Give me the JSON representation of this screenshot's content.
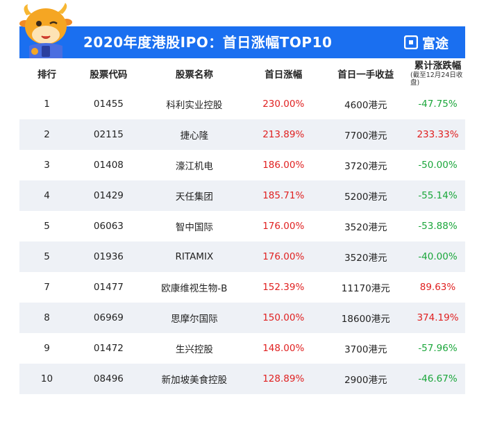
{
  "banner": {
    "title": "2020年度港股IPO：首日涨幅TOP10",
    "brand": "富途",
    "brand_icon": "futu-logo-icon",
    "background_color": "#1a6ff0"
  },
  "table": {
    "headers": {
      "rank": "排行",
      "code": "股票代码",
      "name": "股票名称",
      "first_day_gain": "首日涨幅",
      "first_day_lot_profit": "首日一手收益",
      "cumulative": "累计涨跌幅",
      "cumulative_note": "(截至12月24日收盘)"
    },
    "rows": [
      {
        "rank": "1",
        "code": "01455",
        "name": "科利实业控股",
        "gain": "230.00%",
        "profit": "4600港元",
        "cumulative": "-47.75%",
        "cum_dir": "down"
      },
      {
        "rank": "2",
        "code": "02115",
        "name": "捷心隆",
        "gain": "213.89%",
        "profit": "7700港元",
        "cumulative": "233.33%",
        "cum_dir": "up"
      },
      {
        "rank": "3",
        "code": "01408",
        "name": "濠江机电",
        "gain": "186.00%",
        "profit": "3720港元",
        "cumulative": "-50.00%",
        "cum_dir": "down"
      },
      {
        "rank": "4",
        "code": "01429",
        "name": "天任集团",
        "gain": "185.71%",
        "profit": "5200港元",
        "cumulative": "-55.14%",
        "cum_dir": "down"
      },
      {
        "rank": "5",
        "code": "06063",
        "name": "智中国际",
        "gain": "176.00%",
        "profit": "3520港元",
        "cumulative": "-53.88%",
        "cum_dir": "down"
      },
      {
        "rank": "5",
        "code": "01936",
        "name": "RITAMIX",
        "gain": "176.00%",
        "profit": "3520港元",
        "cumulative": "-40.00%",
        "cum_dir": "down"
      },
      {
        "rank": "7",
        "code": "01477",
        "name": "欧康维视生物-B",
        "gain": "152.39%",
        "profit": "11170港元",
        "cumulative": "89.63%",
        "cum_dir": "up"
      },
      {
        "rank": "8",
        "code": "06969",
        "name": "思摩尔国际",
        "gain": "150.00%",
        "profit": "18600港元",
        "cumulative": "374.19%",
        "cum_dir": "up"
      },
      {
        "rank": "9",
        "code": "01472",
        "name": "生兴控股",
        "gain": "148.00%",
        "profit": "3700港元",
        "cumulative": "-57.96%",
        "cum_dir": "down"
      },
      {
        "rank": "10",
        "code": "08496",
        "name": "新加坡美食控股",
        "gain": "128.89%",
        "profit": "2900港元",
        "cumulative": "-46.67%",
        "cum_dir": "down"
      }
    ]
  },
  "colors": {
    "gain_red": "#e02020",
    "loss_green": "#1aa63a",
    "stripe": "#eef1f6"
  },
  "mascot_icon": "bull-mascot-icon"
}
